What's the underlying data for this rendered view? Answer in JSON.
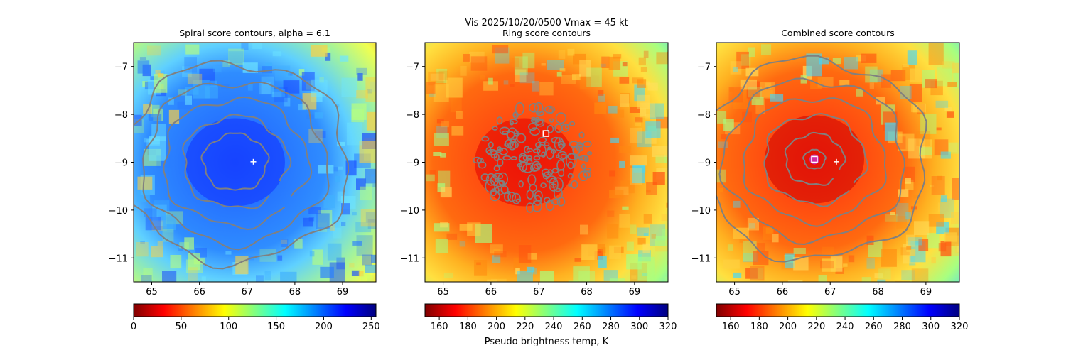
{
  "figure": {
    "suptitle_line1": "Vis  2025/10/20/0500    Vmax = 45 kt"
  },
  "colors": {
    "contour": "#808080",
    "marker_plus": "#ffffff",
    "marker_square": "#ffffff",
    "marker_circle": "#cc33cc"
  },
  "chart_data": [
    {
      "type": "heatmap",
      "title": "Spiral score contours, alpha =  6.1",
      "x_ticks": [
        65,
        66,
        67,
        68,
        69
      ],
      "y_ticks": [
        -7,
        -8,
        -9,
        -10,
        -11
      ],
      "xlim": [
        64.62,
        69.7
      ],
      "ylim": [
        -11.5,
        -6.5
      ],
      "grid": false,
      "colormap": "jet_r",
      "colorbar": {
        "range": [
          0,
          255
        ],
        "ticks": [
          0,
          50,
          100,
          150,
          200,
          250
        ],
        "label": ""
      },
      "markers": [
        {
          "type": "plus",
          "x": 67.13,
          "y": -8.99
        }
      ],
      "contour_center": [
        66.75,
        -9.0
      ],
      "contour_style": "spiral"
    },
    {
      "type": "heatmap",
      "title": "Ring score contours",
      "x_ticks": [
        65,
        66,
        67,
        68,
        69
      ],
      "y_ticks": [
        -7,
        -8,
        -9,
        -10,
        -11
      ],
      "xlim": [
        64.62,
        69.7
      ],
      "ylim": [
        -11.5,
        -6.5
      ],
      "grid": false,
      "colormap": "jet_r",
      "colorbar": {
        "range": [
          150,
          320
        ],
        "ticks": [
          160,
          180,
          200,
          220,
          240,
          260,
          280,
          300,
          320
        ],
        "label": "Pseudo brightness temp, K"
      },
      "markers": [
        {
          "type": "square",
          "x": 67.15,
          "y": -8.4
        }
      ],
      "contour_center": [
        66.7,
        -9.0
      ],
      "contour_style": "speckle"
    },
    {
      "type": "heatmap",
      "title": "Combined score contours",
      "x_ticks": [
        65,
        66,
        67,
        68,
        69
      ],
      "y_ticks": [
        -7,
        -8,
        -9,
        -10,
        -11
      ],
      "xlim": [
        64.62,
        69.7
      ],
      "ylim": [
        -11.5,
        -6.5
      ],
      "grid": false,
      "colormap": "jet_r",
      "colorbar": {
        "range": [
          150,
          320
        ],
        "ticks": [
          160,
          180,
          200,
          220,
          240,
          260,
          280,
          300,
          320
        ],
        "label": ""
      },
      "markers": [
        {
          "type": "plus",
          "x": 67.13,
          "y": -8.99
        },
        {
          "type": "circle-square",
          "x": 66.67,
          "y": -8.94
        }
      ],
      "contour_center": [
        66.67,
        -8.94
      ],
      "contour_style": "spiral"
    }
  ]
}
